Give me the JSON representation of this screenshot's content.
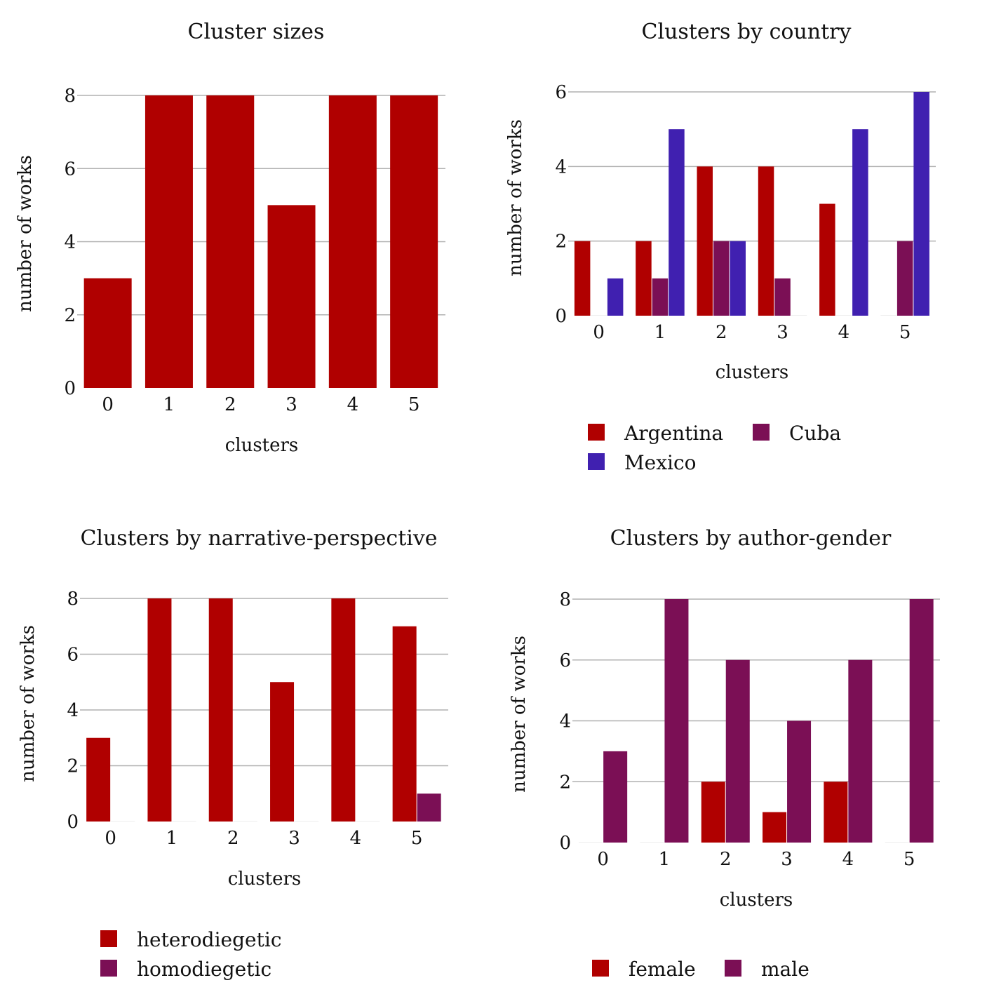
{
  "colors": {
    "red": "#b00000",
    "purple": "#7b0f55",
    "blue": "#4020b0",
    "grid": "#b0b0b0"
  },
  "chart_data": [
    {
      "type": "bar",
      "title": "Cluster sizes",
      "xlabel": "clusters",
      "ylabel": "number of works",
      "categories": [
        "0",
        "1",
        "2",
        "3",
        "4",
        "5"
      ],
      "ylim": [
        0,
        8
      ],
      "yticks": [
        0,
        2,
        4,
        6,
        8
      ],
      "series": [
        {
          "values": [
            3,
            8,
            8,
            5,
            8,
            8
          ],
          "color": "#b00000"
        }
      ],
      "grid": true
    },
    {
      "type": "bar",
      "title": "Clusters by country",
      "xlabel": "clusters",
      "ylabel": "number of works",
      "categories": [
        "0",
        "1",
        "2",
        "3",
        "4",
        "5"
      ],
      "ylim": [
        0,
        6
      ],
      "yticks": [
        0,
        2,
        4,
        6
      ],
      "series": [
        {
          "name": "Argentina",
          "values": [
            2,
            2,
            4,
            4,
            3,
            0
          ],
          "color": "#b00000"
        },
        {
          "name": "Cuba",
          "values": [
            0,
            1,
            2,
            1,
            0,
            2
          ],
          "color": "#7b0f55"
        },
        {
          "name": "Mexico",
          "values": [
            1,
            5,
            2,
            0,
            5,
            6
          ],
          "color": "#4020b0"
        }
      ],
      "grid": true,
      "legend": "bottom"
    },
    {
      "type": "bar",
      "title": "Clusters by narrative-perspective",
      "xlabel": "clusters",
      "ylabel": "number of works",
      "categories": [
        "0",
        "1",
        "2",
        "3",
        "4",
        "5"
      ],
      "ylim": [
        0,
        8
      ],
      "yticks": [
        0,
        2,
        4,
        6,
        8
      ],
      "series": [
        {
          "name": "heterodiegetic",
          "values": [
            3,
            8,
            8,
            5,
            8,
            7
          ],
          "color": "#b00000"
        },
        {
          "name": "homodiegetic",
          "values": [
            0,
            0,
            0,
            0,
            0,
            1
          ],
          "color": "#7b0f55"
        }
      ],
      "grid": true,
      "legend": "bottom"
    },
    {
      "type": "bar",
      "title": "Clusters by author-gender",
      "xlabel": "clusters",
      "ylabel": "number of works",
      "categories": [
        "0",
        "1",
        "2",
        "3",
        "4",
        "5"
      ],
      "ylim": [
        0,
        8
      ],
      "yticks": [
        0,
        2,
        4,
        6,
        8
      ],
      "series": [
        {
          "name": "female",
          "values": [
            0,
            0,
            2,
            1,
            2,
            0
          ],
          "color": "#b00000"
        },
        {
          "name": "male",
          "values": [
            3,
            8,
            6,
            4,
            6,
            8
          ],
          "color": "#7b0f55"
        }
      ],
      "grid": true,
      "legend": "bottom"
    }
  ]
}
